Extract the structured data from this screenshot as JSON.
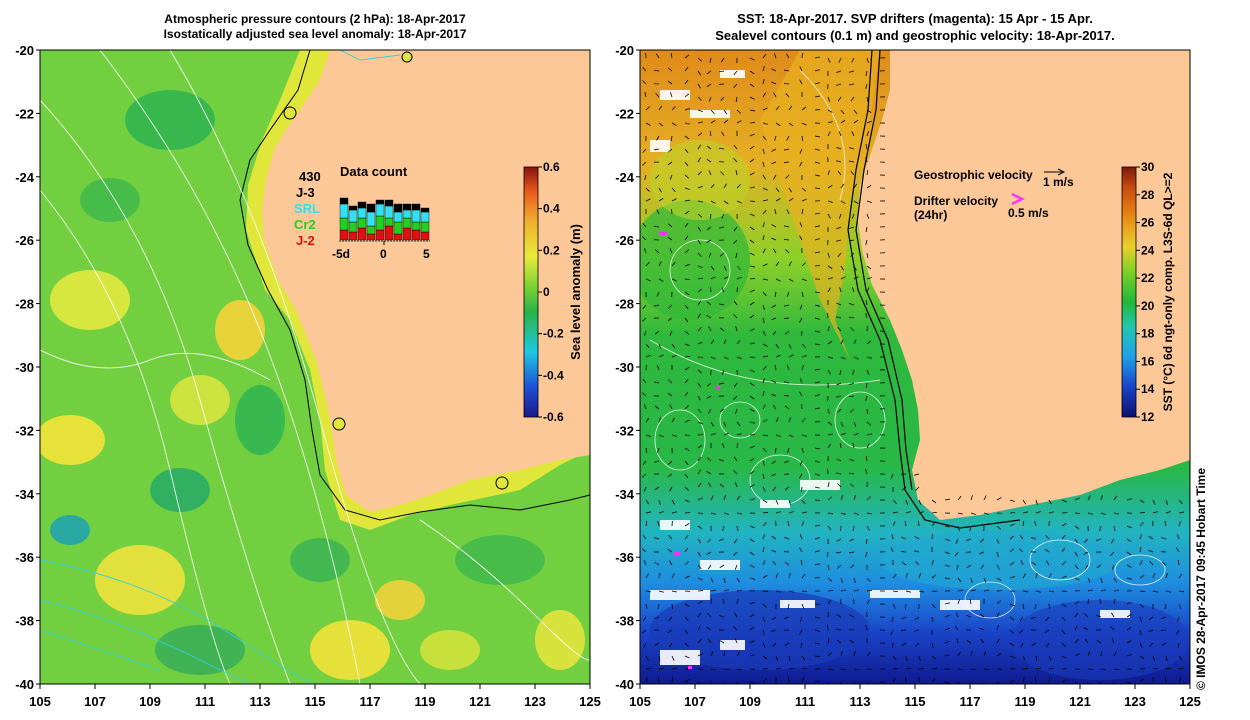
{
  "left_panel": {
    "title_line1": "Atmospheric pressure contours (2 hPa): 18-Apr-2017",
    "title_line2": "Isostatically adjusted sea level anomaly: 18-Apr-2017",
    "y_ticks": [
      "-20",
      "-22",
      "-24",
      "-26",
      "-28",
      "-30",
      "-32",
      "-34",
      "-36",
      "-38",
      "-40"
    ],
    "x_ticks": [
      "105",
      "107",
      "109",
      "111",
      "113",
      "115",
      "117",
      "119",
      "121",
      "123",
      "125"
    ],
    "colorbar": {
      "label": "Sea level anomaly (m)",
      "ticks": [
        "0.6",
        "0.4",
        "0.2",
        "0",
        "-0.2",
        "-0.4",
        "-0.6"
      ],
      "range": [
        -0.6,
        0.6
      ]
    },
    "data_count": {
      "title": "Data count",
      "total": "430",
      "missions": [
        {
          "name": "J-3",
          "color": "#000000"
        },
        {
          "name": "SRL",
          "color": "#33e0f0"
        },
        {
          "name": "Cr2",
          "color": "#22d022"
        },
        {
          "name": "J-2",
          "color": "#e01010"
        }
      ],
      "x_ticks": [
        "-5d",
        "0",
        "5"
      ]
    }
  },
  "right_panel": {
    "title_line1": "SST: 18-Apr-2017. SVP drifters (magenta): 15 Apr - 15 Apr.",
    "title_line2": "Sealevel contours (0.1 m) and geostrophic velocity: 18-Apr-2017.",
    "y_ticks": [
      "-20",
      "-22",
      "-24",
      "-26",
      "-28",
      "-30",
      "-32",
      "-34",
      "-36",
      "-38",
      "-40"
    ],
    "x_ticks": [
      "105",
      "107",
      "109",
      "111",
      "113",
      "115",
      "117",
      "119",
      "121",
      "123",
      "125"
    ],
    "legend": {
      "geostrophic_label": "Geostrophic velocity",
      "geostrophic_scale": "1 m/s",
      "drifter_label_1": "Drifter velocity",
      "drifter_label_2": "(24hr)",
      "drifter_scale": "0.5 m/s"
    },
    "colorbar": {
      "label": "SST (°C) 6d ngt-only comp. L3S-6d QL>=2",
      "ticks": [
        "30",
        "28",
        "26",
        "24",
        "22",
        "20",
        "18",
        "16",
        "14",
        "12"
      ],
      "range": [
        12,
        30
      ]
    }
  },
  "credit": "© IMOS 28-Apr-2017 09:45 Hobart Time",
  "colors": {
    "land": "#fcc898",
    "sla_mid": "#6cd23c",
    "sst_warm": "#e48a12",
    "sst_cold": "#1a44c8"
  }
}
